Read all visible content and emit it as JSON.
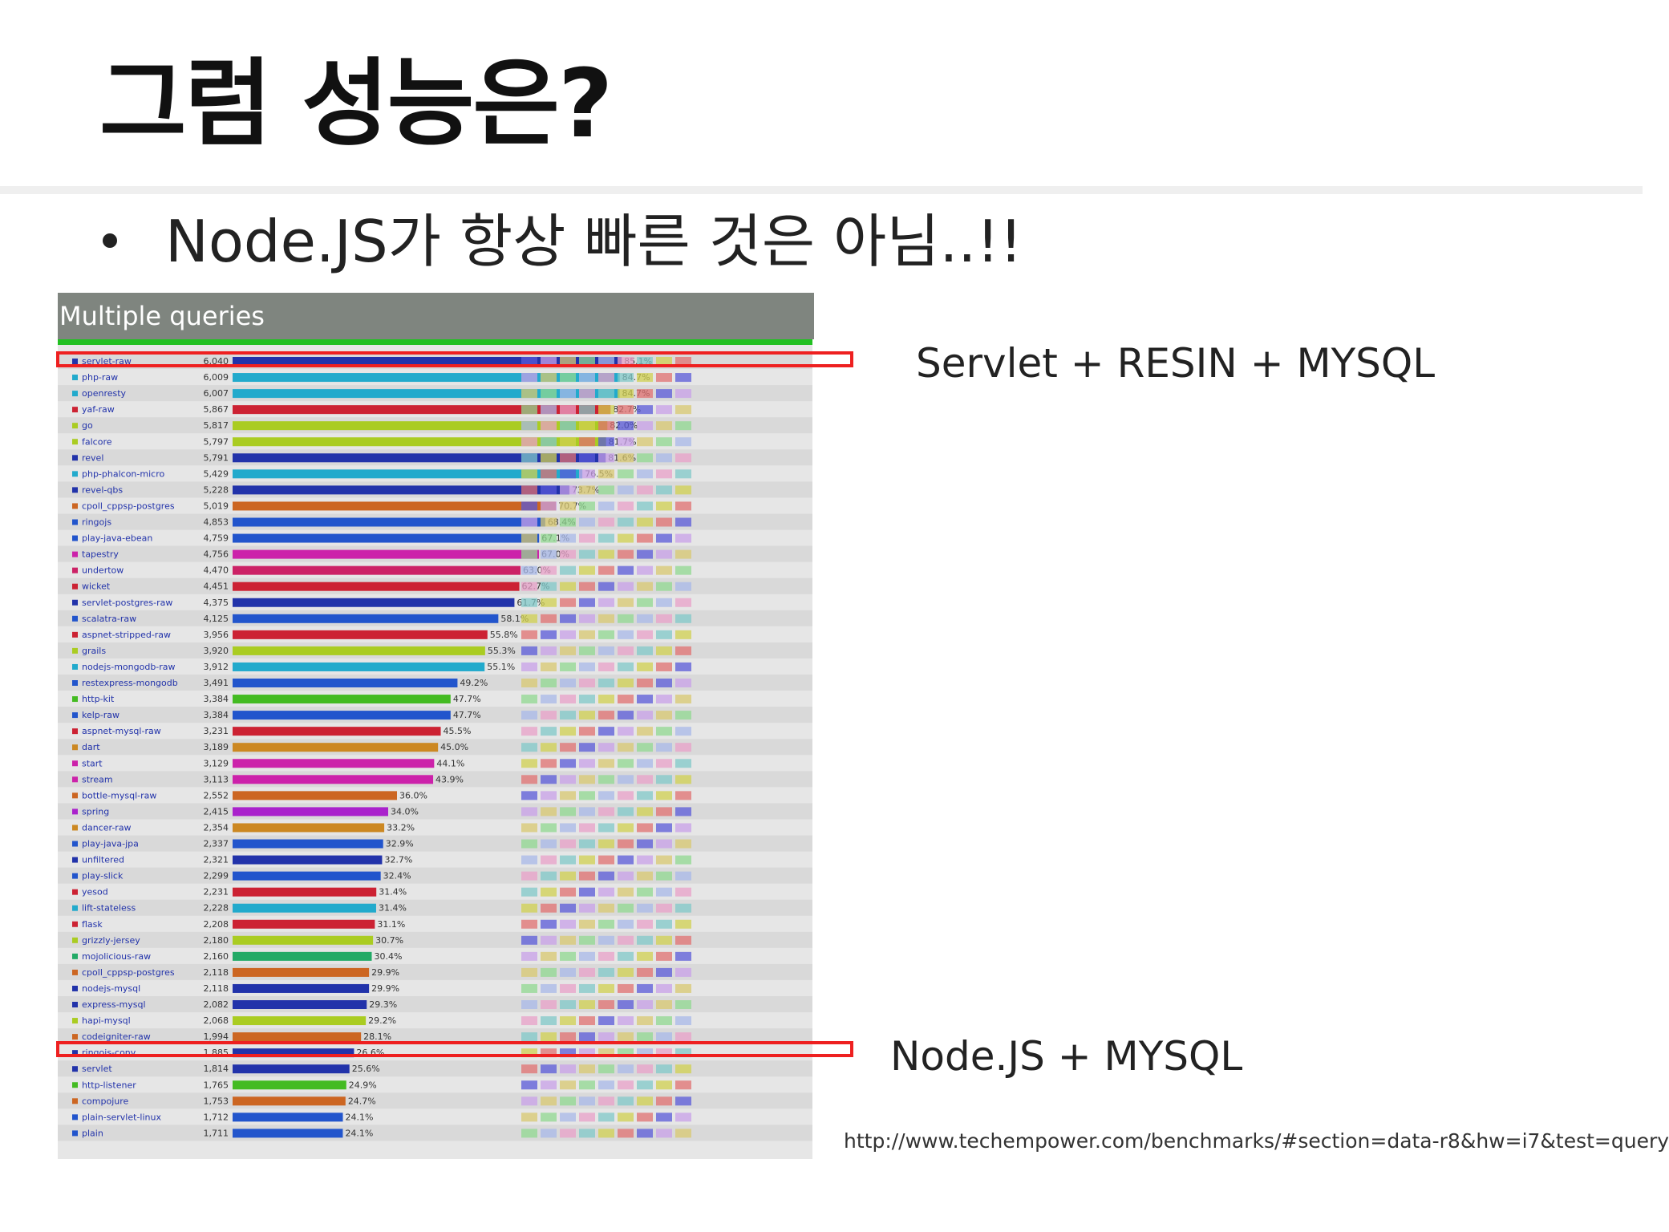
{
  "slide": {
    "title": "그럼 성능은?",
    "bullet": "Node.JS가 항상 빠른 것은 아님..!!",
    "annotation_top": "Servlet  +  RESIN  +  MYSQL",
    "annotation_bottom": "Node.JS  +  MYSQL",
    "source_url": "http://www.techempower.com/benchmarks/#section=data-r8&hw=i7&test=query",
    "highlight_color": "#ee2020"
  },
  "chart_data": {
    "type": "bar",
    "title": "Multiple queries",
    "orientation": "horizontal",
    "rows": [
      {
        "name": "servlet-raw",
        "value": 6040,
        "pct": "85.1%",
        "color": "#2233aa"
      },
      {
        "name": "php-raw",
        "value": 6009,
        "pct": "84.7%",
        "color": "#22aacc"
      },
      {
        "name": "openresty",
        "value": 6007,
        "pct": "84.7%",
        "color": "#22aacc"
      },
      {
        "name": "yaf-raw",
        "value": 5867,
        "pct": "82.7%",
        "color": "#cc2233"
      },
      {
        "name": "go",
        "value": 5817,
        "pct": "82.0%",
        "color": "#aacc22"
      },
      {
        "name": "falcore",
        "value": 5797,
        "pct": "81.7%",
        "color": "#aacc22"
      },
      {
        "name": "revel",
        "value": 5791,
        "pct": "81.6%",
        "color": "#2233aa"
      },
      {
        "name": "php-phalcon-micro",
        "value": 5429,
        "pct": "76.5%",
        "color": "#22aacc"
      },
      {
        "name": "revel-qbs",
        "value": 5228,
        "pct": "73.7%",
        "color": "#2233aa"
      },
      {
        "name": "cpoll_cppsp-postgres",
        "value": 5019,
        "pct": "70.7%",
        "color": "#cc6622"
      },
      {
        "name": "ringojs",
        "value": 4853,
        "pct": "68.4%",
        "color": "#2255cc"
      },
      {
        "name": "play-java-ebean",
        "value": 4759,
        "pct": "67.1%",
        "color": "#2255cc"
      },
      {
        "name": "tapestry",
        "value": 4756,
        "pct": "67.0%",
        "color": "#cc22aa"
      },
      {
        "name": "undertow",
        "value": 4470,
        "pct": "63.0%",
        "color": "#cc2266"
      },
      {
        "name": "wicket",
        "value": 4451,
        "pct": "62.7%",
        "color": "#cc2233"
      },
      {
        "name": "servlet-postgres-raw",
        "value": 4375,
        "pct": "61.7%",
        "color": "#2233aa"
      },
      {
        "name": "scalatra-raw",
        "value": 4125,
        "pct": "58.1%",
        "color": "#2255cc"
      },
      {
        "name": "aspnet-stripped-raw",
        "value": 3956,
        "pct": "55.8%",
        "color": "#cc2233"
      },
      {
        "name": "grails",
        "value": 3920,
        "pct": "55.3%",
        "color": "#aacc22"
      },
      {
        "name": "nodejs-mongodb-raw",
        "value": 3912,
        "pct": "55.1%",
        "color": "#22aacc"
      },
      {
        "name": "restexpress-mongodb",
        "value": 3491,
        "pct": "49.2%",
        "color": "#2255cc"
      },
      {
        "name": "http-kit",
        "value": 3384,
        "pct": "47.7%",
        "color": "#44bb22"
      },
      {
        "name": "kelp-raw",
        "value": 3384,
        "pct": "47.7%",
        "color": "#2255cc"
      },
      {
        "name": "aspnet-mysql-raw",
        "value": 3231,
        "pct": "45.5%",
        "color": "#cc2233"
      },
      {
        "name": "dart",
        "value": 3189,
        "pct": "45.0%",
        "color": "#cc8822"
      },
      {
        "name": "start",
        "value": 3129,
        "pct": "44.1%",
        "color": "#cc22aa"
      },
      {
        "name": "stream",
        "value": 3113,
        "pct": "43.9%",
        "color": "#cc22aa"
      },
      {
        "name": "bottle-mysql-raw",
        "value": 2552,
        "pct": "36.0%",
        "color": "#cc6622"
      },
      {
        "name": "spring",
        "value": 2415,
        "pct": "34.0%",
        "color": "#aa22cc"
      },
      {
        "name": "dancer-raw",
        "value": 2354,
        "pct": "33.2%",
        "color": "#cc8822"
      },
      {
        "name": "play-java-jpa",
        "value": 2337,
        "pct": "32.9%",
        "color": "#2255cc"
      },
      {
        "name": "unfiltered",
        "value": 2321,
        "pct": "32.7%",
        "color": "#2233aa"
      },
      {
        "name": "play-slick",
        "value": 2299,
        "pct": "32.4%",
        "color": "#2255cc"
      },
      {
        "name": "yesod",
        "value": 2231,
        "pct": "31.4%",
        "color": "#cc2233"
      },
      {
        "name": "lift-stateless",
        "value": 2228,
        "pct": "31.4%",
        "color": "#22aacc"
      },
      {
        "name": "flask",
        "value": 2208,
        "pct": "31.1%",
        "color": "#cc2233"
      },
      {
        "name": "grizzly-jersey",
        "value": 2180,
        "pct": "30.7%",
        "color": "#aacc22"
      },
      {
        "name": "mojolicious-raw",
        "value": 2160,
        "pct": "30.4%",
        "color": "#22aa66"
      },
      {
        "name": "cpoll_cppsp-postgres",
        "value": 2118,
        "pct": "29.9%",
        "color": "#cc6622"
      },
      {
        "name": "nodejs-mysql",
        "value": 2118,
        "pct": "29.9%",
        "color": "#2233aa"
      },
      {
        "name": "express-mysql",
        "value": 2082,
        "pct": "29.3%",
        "color": "#2233aa"
      },
      {
        "name": "hapi-mysql",
        "value": 2068,
        "pct": "29.2%",
        "color": "#aacc22"
      },
      {
        "name": "codeigniter-raw",
        "value": 1994,
        "pct": "28.1%",
        "color": "#cc6622"
      },
      {
        "name": "ringojs-conv",
        "value": 1885,
        "pct": "26.6%",
        "color": "#2233aa"
      },
      {
        "name": "servlet",
        "value": 1814,
        "pct": "25.6%",
        "color": "#2233aa"
      },
      {
        "name": "http-listener",
        "value": 1765,
        "pct": "24.9%",
        "color": "#44bb22"
      },
      {
        "name": "compojure",
        "value": 1753,
        "pct": "24.7%",
        "color": "#cc6622"
      },
      {
        "name": "plain-servlet-linux",
        "value": 1712,
        "pct": "24.1%",
        "color": "#2255cc"
      },
      {
        "name": "plain",
        "value": 1711,
        "pct": "24.1%",
        "color": "#2255cc"
      }
    ],
    "xlim": [
      0,
      7096
    ],
    "grid": false,
    "legend": "none"
  }
}
